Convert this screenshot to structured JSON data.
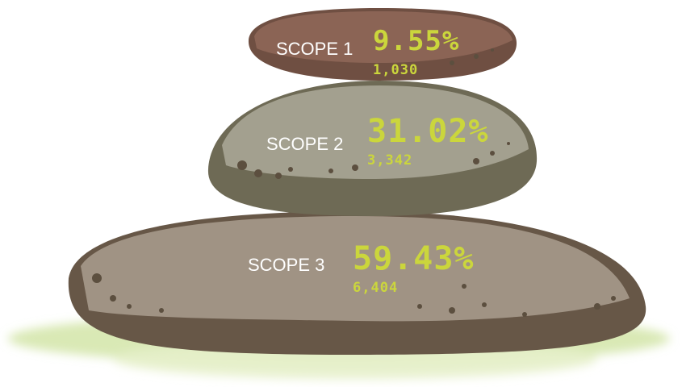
{
  "stones": [
    {
      "label": "SCOPE 1",
      "percent": "9.55%",
      "amount": "1,030"
    },
    {
      "label": "SCOPE 2",
      "percent": "31.02%",
      "amount": "3,342"
    },
    {
      "label": "SCOPE 3",
      "percent": "59.43%",
      "amount": "6,404"
    }
  ]
}
